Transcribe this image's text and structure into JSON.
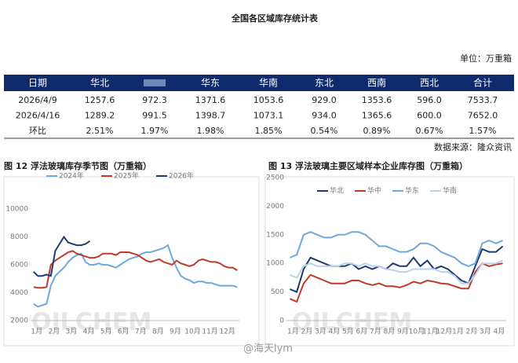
{
  "title": "全国各区域库存统计表",
  "unit": "单位：万重箱",
  "table": {
    "header": [
      "日期",
      "华北",
      null,
      "华东",
      "华南",
      "东北",
      "西南",
      "西北",
      "合计"
    ],
    "rows": [
      [
        "2026/4/9",
        "1257.6",
        "972.3",
        "1371.6",
        "1053.6",
        "929.0",
        "1353.6",
        "596.0",
        "7533.7"
      ],
      [
        "2026/4/16",
        "1289.2",
        "991.5",
        "1398.7",
        "1073.1",
        "934.0",
        "1365.6",
        "600.0",
        "7652.0"
      ],
      [
        "环比",
        "2.51%",
        "1.97%",
        "1.98%",
        "1.85%",
        "0.54%",
        "0.89%",
        "0.67%",
        "1.57%"
      ]
    ]
  },
  "source": "数据来源：隆众资讯",
  "watermark": "OILCHEM",
  "weibo": "@海天lym",
  "chart_data": [
    {
      "type": "line",
      "title": "图 12 浮法玻璃库存季节图（万重箱）",
      "legend": "top",
      "categories": [
        "1月",
        null,
        null,
        null,
        "2月",
        null,
        null,
        null,
        "3月",
        null,
        null,
        null,
        "4月",
        null,
        null,
        null,
        "5月",
        null,
        null,
        null,
        "6月",
        null,
        null,
        null,
        "7月",
        null,
        null,
        null,
        "8月",
        null,
        null,
        null,
        "9月",
        null,
        null,
        null,
        "10月",
        null,
        null,
        null,
        "11月",
        null,
        null,
        null,
        "12月",
        null,
        null,
        null
      ],
      "ylim": [
        2000,
        10000
      ],
      "yticks": [
        2000,
        4000,
        6000,
        8000,
        10000
      ],
      "series": [
        {
          "name": "2024年",
          "color": "#6fa8dc",
          "values": [
            3200,
            3000,
            3100,
            3200,
            4500,
            5200,
            5500,
            5800,
            6200,
            6500,
            6700,
            6800,
            6200,
            6000,
            6000,
            6100,
            6000,
            6000,
            5900,
            5800,
            6000,
            6200,
            6400,
            6500,
            6600,
            6800,
            6900,
            6900,
            7000,
            7100,
            7200,
            7400,
            6500,
            5800,
            5200,
            5000,
            4900,
            4700,
            4800,
            4800,
            4700,
            4700,
            4600,
            4500,
            4500,
            4500,
            4500,
            4400
          ]
        },
        {
          "name": "2025年",
          "color": "#c0392b",
          "values": [
            4400,
            4350,
            4350,
            4400,
            6000,
            6300,
            6500,
            6700,
            6900,
            7000,
            6800,
            6700,
            6600,
            6500,
            6500,
            6600,
            6800,
            6800,
            6800,
            6700,
            6900,
            6900,
            6900,
            6800,
            6700,
            6500,
            6300,
            6200,
            6300,
            6400,
            6200,
            6100,
            6000,
            6300,
            6100,
            6000,
            5900,
            6000,
            6300,
            6400,
            6300,
            6200,
            6200,
            6100,
            5900,
            5800,
            5800,
            5600
          ]
        },
        {
          "name": "2026年",
          "color": "#1f3b73",
          "values": [
            5500,
            5200,
            5200,
            5300,
            5200,
            7000,
            7500,
            8000,
            7600,
            7500,
            7400,
            7400,
            7500,
            7700,
            null,
            null,
            null,
            null,
            null,
            null,
            null,
            null,
            null,
            null,
            null,
            null,
            null,
            null,
            null,
            null,
            null,
            null,
            null,
            null,
            null,
            null,
            null,
            null,
            null,
            null,
            null,
            null,
            null,
            null,
            null,
            null,
            null,
            null
          ]
        }
      ]
    },
    {
      "type": "line",
      "title": "图 13 浮法玻璃主要区域样本企业库存图（万重箱）",
      "legend": "top",
      "categories": [
        "1月",
        null,
        "2月",
        null,
        "3月",
        null,
        "4月",
        null,
        "5月",
        null,
        "6月",
        null,
        "7月",
        null,
        "8月",
        null,
        "9月",
        null,
        "10月",
        null,
        "11月",
        null,
        "12月",
        null,
        "1月",
        null,
        "2月",
        null,
        "3月",
        null,
        "4月",
        null
      ],
      "ylim": [
        0,
        2500
      ],
      "yticks": [
        0,
        500,
        1000,
        1500,
        2000,
        2500
      ],
      "series": [
        {
          "name": "华北",
          "color": "#1f3b73",
          "values": [
            550,
            500,
            900,
            1100,
            1050,
            1000,
            950,
            950,
            950,
            1000,
            900,
            950,
            900,
            950,
            900,
            1000,
            950,
            950,
            1100,
            950,
            1050,
            900,
            950,
            900,
            800,
            700,
            650,
            950,
            1250,
            1200,
            1200,
            1300
          ]
        },
        {
          "name": "华中",
          "color": "#c0392b",
          "values": [
            380,
            330,
            650,
            800,
            750,
            700,
            650,
            650,
            650,
            700,
            700,
            650,
            620,
            650,
            600,
            600,
            580,
            620,
            680,
            650,
            700,
            680,
            650,
            640,
            600,
            560,
            560,
            850,
            1000,
            950,
            980,
            1000
          ]
        },
        {
          "name": "华东",
          "color": "#6fa8dc",
          "values": [
            1100,
            1150,
            1500,
            1550,
            1500,
            1450,
            1450,
            1500,
            1500,
            1550,
            1550,
            1500,
            1400,
            1300,
            1300,
            1250,
            1200,
            1200,
            1250,
            1350,
            1350,
            1300,
            1200,
            1150,
            1100,
            1000,
            950,
            1000,
            1350,
            1400,
            1350,
            1400
          ]
        },
        {
          "name": "华南",
          "color": "#b8d3ea",
          "values": [
            800,
            750,
            950,
            1000,
            950,
            950,
            950,
            950,
            1000,
            1000,
            950,
            1000,
            950,
            950,
            900,
            880,
            850,
            850,
            900,
            900,
            900,
            900,
            850,
            850,
            780,
            650,
            650,
            800,
            1000,
            1000,
            1000,
            1050
          ]
        }
      ]
    }
  ]
}
